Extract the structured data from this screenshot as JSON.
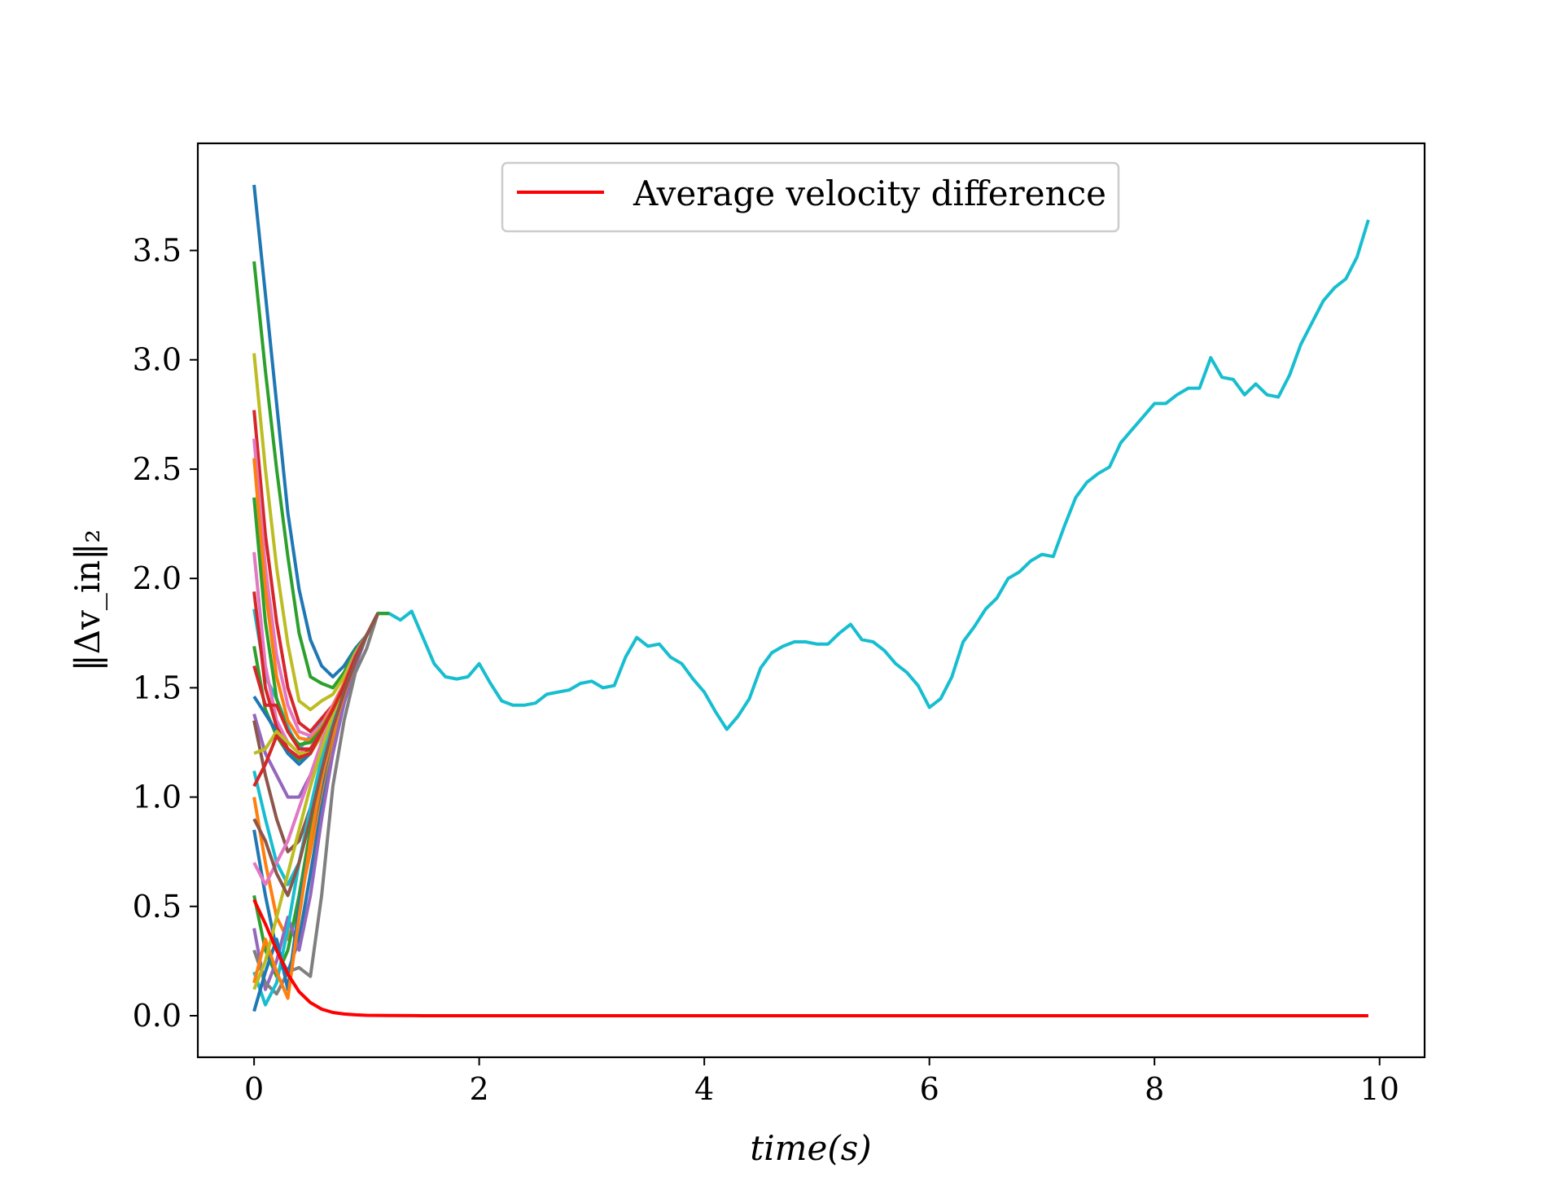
{
  "chart_data": {
    "type": "line",
    "xlabel": "time(s)",
    "ylabel": "‖Δv_in‖₂",
    "xlim": [
      -0.5,
      10.4
    ],
    "ylim": [
      -0.19,
      3.99
    ],
    "xticks": [
      0,
      2,
      4,
      6,
      8,
      10
    ],
    "xtick_labels": [
      "0",
      "2",
      "4",
      "6",
      "8",
      "10"
    ],
    "yticks": [
      0.0,
      0.5,
      1.0,
      1.5,
      2.0,
      2.5,
      3.0,
      3.5
    ],
    "ytick_labels": [
      "0.0",
      "0.5",
      "1.0",
      "1.5",
      "2.0",
      "2.5",
      "3.0",
      "3.5"
    ],
    "grid": false,
    "legend": {
      "position": "top-center",
      "entries": [
        "Average velocity difference"
      ]
    },
    "series": [
      {
        "name": "Average velocity difference",
        "color": "#ff0000",
        "x": [
          0,
          0.1,
          0.2,
          0.3,
          0.4,
          0.5,
          0.6,
          0.7,
          0.8,
          0.9,
          1.0,
          1.2,
          1.5,
          2,
          4,
          6,
          8,
          9.9
        ],
        "values": [
          0.53,
          0.42,
          0.3,
          0.19,
          0.11,
          0.06,
          0.03,
          0.015,
          0.008,
          0.004,
          0.002,
          0.001,
          0,
          0,
          0,
          0,
          0,
          0
        ]
      },
      {
        "color": "#17becf",
        "x": [
          0,
          0.1,
          0.2,
          0.3,
          0.4,
          0.5,
          0.6,
          0.7,
          0.8,
          0.9,
          1.0,
          1.1,
          1.2,
          1.3,
          1.4,
          1.5,
          1.6,
          1.7,
          1.8,
          1.9,
          2.0,
          2.1,
          2.2,
          2.3,
          2.4,
          2.5,
          2.6,
          2.7,
          2.8,
          2.9,
          3.0,
          3.1,
          3.2,
          3.3,
          3.4,
          3.5,
          3.6,
          3.7,
          3.8,
          3.9,
          4.0,
          4.1,
          4.2,
          4.3,
          4.4,
          4.5,
          4.6,
          4.7,
          4.8,
          4.9,
          5.0,
          5.1,
          5.2,
          5.3,
          5.4,
          5.5,
          5.6,
          5.7,
          5.8,
          5.9,
          6.0,
          6.1,
          6.2,
          6.3,
          6.4,
          6.5,
          6.6,
          6.7,
          6.8,
          6.9,
          7.0,
          7.1,
          7.2,
          7.3,
          7.4,
          7.5,
          7.6,
          7.7,
          7.8,
          7.9,
          8.0,
          8.1,
          8.2,
          8.3,
          8.4,
          8.5,
          8.6,
          8.7,
          8.8,
          8.9,
          9.0,
          9.1,
          9.2,
          9.3,
          9.4,
          9.5,
          9.6,
          9.7,
          9.8,
          9.9
        ],
        "values": [
          1.86,
          1.55,
          1.45,
          1.32,
          1.22,
          1.28,
          1.35,
          1.42,
          1.52,
          1.65,
          1.74,
          1.84,
          1.84,
          1.81,
          1.85,
          1.73,
          1.61,
          1.55,
          1.54,
          1.55,
          1.61,
          1.52,
          1.44,
          1.42,
          1.42,
          1.43,
          1.47,
          1.48,
          1.49,
          1.52,
          1.53,
          1.5,
          1.51,
          1.64,
          1.73,
          1.69,
          1.7,
          1.64,
          1.61,
          1.54,
          1.48,
          1.39,
          1.31,
          1.37,
          1.45,
          1.59,
          1.66,
          1.69,
          1.71,
          1.71,
          1.7,
          1.7,
          1.75,
          1.79,
          1.72,
          1.71,
          1.67,
          1.61,
          1.57,
          1.51,
          1.41,
          1.45,
          1.55,
          1.71,
          1.78,
          1.86,
          1.91,
          2.0,
          2.03,
          2.08,
          2.11,
          2.1,
          2.24,
          2.37,
          2.44,
          2.48,
          2.51,
          2.62,
          2.68,
          2.74,
          2.8,
          2.8,
          2.84,
          2.87,
          2.87,
          3.01,
          2.92,
          2.91,
          2.84,
          2.89,
          2.84,
          2.83,
          2.93,
          3.07,
          3.17,
          3.27,
          3.33,
          3.37,
          3.47,
          3.64
        ]
      },
      {
        "color": "#1f77b4",
        "x": [
          0,
          0.1,
          0.2,
          0.3,
          0.4,
          0.5,
          0.6,
          0.7,
          0.8,
          0.9,
          1.0,
          1.1,
          1.2
        ],
        "values": [
          3.8,
          3.3,
          2.8,
          2.3,
          1.95,
          1.72,
          1.6,
          1.55,
          1.6,
          1.68,
          1.74,
          1.84,
          1.84
        ]
      },
      {
        "color": "#2ca02c",
        "x": [
          0,
          0.1,
          0.2,
          0.3,
          0.4,
          0.5,
          0.6,
          0.7,
          0.8,
          0.9,
          1.0,
          1.1,
          1.2
        ],
        "values": [
          3.45,
          2.95,
          2.5,
          2.1,
          1.75,
          1.55,
          1.52,
          1.5,
          1.57,
          1.67,
          1.74,
          1.84,
          1.84
        ]
      },
      {
        "color": "#bcbd22",
        "x": [
          0,
          0.1,
          0.2,
          0.3,
          0.4,
          0.5,
          0.6,
          0.7,
          0.8,
          0.9,
          1.0,
          1.1
        ],
        "values": [
          3.03,
          2.5,
          2.05,
          1.7,
          1.44,
          1.4,
          1.44,
          1.47,
          1.55,
          1.66,
          1.74,
          1.84
        ]
      },
      {
        "color": "#d62728",
        "x": [
          0,
          0.1,
          0.2,
          0.3,
          0.4,
          0.5,
          0.6,
          0.7,
          0.8,
          0.9,
          1.0,
          1.1
        ],
        "values": [
          2.77,
          2.2,
          1.8,
          1.5,
          1.34,
          1.3,
          1.36,
          1.42,
          1.52,
          1.65,
          1.74,
          1.84
        ]
      },
      {
        "color": "#e377c2",
        "x": [
          0,
          0.1,
          0.2,
          0.3,
          0.4,
          0.5,
          0.6,
          0.7,
          0.8,
          0.9,
          1.0,
          1.1
        ],
        "values": [
          2.64,
          2.05,
          1.65,
          1.42,
          1.3,
          1.28,
          1.33,
          1.42,
          1.52,
          1.65,
          1.74,
          1.84
        ]
      },
      {
        "color": "#ff7f0e",
        "x": [
          0,
          0.1,
          0.2,
          0.3,
          0.4,
          0.5,
          0.6,
          0.7,
          0.8,
          0.9,
          1.0,
          1.1
        ],
        "values": [
          2.55,
          1.95,
          1.55,
          1.35,
          1.27,
          1.26,
          1.32,
          1.41,
          1.52,
          1.64,
          1.74,
          1.84
        ]
      },
      {
        "color": "#2ca02c",
        "x": [
          0,
          0.1,
          0.2,
          0.3,
          0.4,
          0.5,
          0.6,
          0.7,
          0.8,
          0.9,
          1.0,
          1.1
        ],
        "values": [
          2.37,
          1.8,
          1.45,
          1.3,
          1.24,
          1.25,
          1.31,
          1.4,
          1.51,
          1.64,
          1.74,
          1.84
        ]
      },
      {
        "color": "#e377c2",
        "x": [
          0,
          0.1,
          0.2,
          0.3,
          0.4,
          0.5,
          0.6,
          0.7,
          0.8,
          0.9,
          1.0,
          1.1
        ],
        "values": [
          2.12,
          1.6,
          1.35,
          1.25,
          1.2,
          1.22,
          1.3,
          1.4,
          1.51,
          1.64,
          1.74,
          1.84
        ]
      },
      {
        "color": "#d62728",
        "x": [
          0,
          0.1,
          0.2,
          0.3,
          0.4,
          0.5,
          0.6,
          0.7,
          0.8,
          0.9,
          1.0,
          1.1
        ],
        "values": [
          1.94,
          1.5,
          1.32,
          1.22,
          1.18,
          1.22,
          1.3,
          1.4,
          1.51,
          1.64,
          1.74,
          1.84
        ]
      },
      {
        "color": "#2ca02c",
        "x": [
          0,
          0.1,
          0.2,
          0.3,
          0.4,
          0.5,
          0.6,
          0.7,
          0.8,
          0.9,
          1.0,
          1.1
        ],
        "values": [
          1.69,
          1.4,
          1.28,
          1.2,
          1.17,
          1.21,
          1.3,
          1.4,
          1.51,
          1.64,
          1.74,
          1.84
        ]
      },
      {
        "color": "#d62728",
        "x": [
          0,
          0.1,
          0.2,
          0.3,
          0.4,
          0.5,
          0.6,
          0.7,
          0.8,
          0.9,
          1.0,
          1.1
        ],
        "values": [
          1.6,
          1.42,
          1.42,
          1.3,
          1.22,
          1.22,
          1.3,
          1.4,
          1.51,
          1.64,
          1.74,
          1.84
        ]
      },
      {
        "color": "#1f77b4",
        "x": [
          0,
          0.1,
          0.2,
          0.3,
          0.4,
          0.5,
          0.6,
          0.7,
          0.8,
          0.9,
          1.0,
          1.1
        ],
        "values": [
          1.46,
          1.38,
          1.3,
          1.2,
          1.15,
          1.2,
          1.3,
          1.4,
          1.51,
          1.64,
          1.74,
          1.84
        ]
      },
      {
        "color": "#9467bd",
        "x": [
          0,
          0.1,
          0.2,
          0.3,
          0.4,
          0.5,
          0.6,
          0.7,
          0.8,
          0.9,
          1.0,
          1.1
        ],
        "values": [
          1.38,
          1.2,
          1.1,
          1.0,
          1.0,
          1.1,
          1.25,
          1.38,
          1.5,
          1.63,
          1.74,
          1.84
        ]
      },
      {
        "color": "#8c564b",
        "x": [
          0,
          0.1,
          0.2,
          0.3,
          0.4,
          0.5,
          0.6,
          0.7,
          0.8,
          0.9,
          1.0,
          1.1
        ],
        "values": [
          1.35,
          1.1,
          0.9,
          0.75,
          0.8,
          0.95,
          1.15,
          1.33,
          1.48,
          1.62,
          1.74,
          1.84
        ]
      },
      {
        "color": "#bcbd22",
        "x": [
          0,
          0.1,
          0.2,
          0.3,
          0.4,
          0.5,
          0.6,
          0.7,
          0.8,
          0.9,
          1.0,
          1.1
        ],
        "values": [
          1.2,
          1.22,
          1.3,
          1.25,
          1.2,
          1.2,
          1.28,
          1.4,
          1.51,
          1.64,
          1.74,
          1.84
        ]
      },
      {
        "color": "#17becf",
        "x": [
          0,
          0.1,
          0.2,
          0.3,
          0.4,
          0.5,
          0.6,
          0.7,
          0.8,
          0.9,
          1.0,
          1.1
        ],
        "values": [
          1.12,
          0.9,
          0.7,
          0.6,
          0.7,
          0.9,
          1.1,
          1.3,
          1.47,
          1.62,
          1.74,
          1.84
        ]
      },
      {
        "color": "#ff7f0e",
        "x": [
          0,
          0.1,
          0.2,
          0.3,
          0.4,
          0.5,
          0.6,
          0.7,
          0.8,
          0.9,
          1.0,
          1.1
        ],
        "values": [
          1.0,
          0.7,
          0.45,
          0.35,
          0.5,
          0.75,
          1.0,
          1.25,
          1.45,
          1.61,
          1.74,
          1.84
        ]
      },
      {
        "color": "#1f77b4",
        "x": [
          0,
          0.1,
          0.2,
          0.3,
          0.4,
          0.5,
          0.6,
          0.7,
          0.8,
          0.9,
          1.0,
          1.1
        ],
        "values": [
          0.85,
          0.55,
          0.3,
          0.2,
          0.35,
          0.65,
          0.95,
          1.2,
          1.43,
          1.6,
          1.74,
          1.84
        ]
      },
      {
        "color": "#e377c2",
        "x": [
          0,
          0.1,
          0.2,
          0.3,
          0.4,
          0.5,
          0.6,
          0.7,
          0.8,
          0.9,
          1.0,
          1.1
        ],
        "values": [
          0.7,
          0.6,
          0.7,
          0.8,
          0.95,
          1.1,
          1.25,
          1.38,
          1.5,
          1.63,
          1.74,
          1.84
        ]
      },
      {
        "color": "#2ca02c",
        "x": [
          0,
          0.1,
          0.2,
          0.3,
          0.4,
          0.5,
          0.6,
          0.7,
          0.8,
          0.9,
          1.0,
          1.1
        ],
        "values": [
          0.55,
          0.3,
          0.18,
          0.3,
          0.55,
          0.85,
          1.1,
          1.32,
          1.48,
          1.62,
          1.74,
          1.84
        ]
      },
      {
        "color": "#9467bd",
        "x": [
          0,
          0.1,
          0.2,
          0.3,
          0.4,
          0.5,
          0.6,
          0.7,
          0.8,
          0.9,
          1.0,
          1.1
        ],
        "values": [
          0.4,
          0.12,
          0.25,
          0.45,
          0.3,
          0.55,
          0.9,
          1.2,
          1.43,
          1.6,
          1.74,
          1.84
        ]
      },
      {
        "color": "#7f7f7f",
        "x": [
          0,
          0.1,
          0.2,
          0.3,
          0.4,
          0.5,
          0.6,
          0.7,
          0.8,
          0.9,
          1.0,
          1.1
        ],
        "values": [
          0.3,
          0.15,
          0.1,
          0.2,
          0.22,
          0.18,
          0.55,
          1.05,
          1.35,
          1.57,
          1.68,
          1.84
        ]
      },
      {
        "color": "#17becf",
        "x": [
          0,
          0.1,
          0.2,
          0.3,
          0.4,
          0.5,
          0.6,
          0.7,
          0.8,
          0.9,
          1.0,
          1.1
        ],
        "values": [
          0.2,
          0.05,
          0.15,
          0.4,
          0.7,
          0.95,
          1.18,
          1.36,
          1.5,
          1.63,
          1.74,
          1.84
        ]
      },
      {
        "color": "#1f77b4",
        "x": [
          0,
          0.1,
          0.2,
          0.3,
          0.4,
          0.5,
          0.6,
          0.7,
          0.8,
          0.9,
          1.0,
          1.1
        ],
        "values": [
          0.02,
          0.2,
          0.35,
          0.12,
          0.5,
          0.8,
          1.05,
          1.3,
          1.47,
          1.62,
          1.74,
          1.84
        ]
      },
      {
        "color": "#ff7f0e",
        "x": [
          0,
          0.1,
          0.2,
          0.3,
          0.4,
          0.5,
          0.6,
          0.7,
          0.8,
          0.9,
          1.0,
          1.1
        ],
        "values": [
          0.15,
          0.35,
          0.2,
          0.08,
          0.45,
          0.8,
          1.08,
          1.3,
          1.47,
          1.62,
          1.74,
          1.84
        ]
      },
      {
        "color": "#bcbd22",
        "x": [
          0,
          0.1,
          0.2,
          0.3,
          0.4,
          0.5,
          0.6,
          0.7,
          0.8,
          0.9,
          1.0,
          1.1
        ],
        "values": [
          0.12,
          0.25,
          0.45,
          0.65,
          0.85,
          1.05,
          1.22,
          1.38,
          1.5,
          1.63,
          1.74,
          1.84
        ]
      },
      {
        "color": "#d62728",
        "x": [
          0,
          0.1,
          0.2,
          0.3,
          0.4,
          0.5,
          0.6,
          0.7,
          0.8,
          0.9,
          1.0,
          1.1
        ],
        "values": [
          1.05,
          1.15,
          1.28,
          1.22,
          1.18,
          1.2,
          1.3,
          1.4,
          1.51,
          1.64,
          1.74,
          1.84
        ]
      },
      {
        "color": "#8c564b",
        "x": [
          0,
          0.1,
          0.2,
          0.3,
          0.4,
          0.5,
          0.6,
          0.7,
          0.8,
          0.9,
          1.0,
          1.1
        ],
        "values": [
          0.9,
          0.8,
          0.65,
          0.55,
          0.7,
          0.9,
          1.12,
          1.32,
          1.48,
          1.62,
          1.74,
          1.84
        ]
      }
    ]
  }
}
